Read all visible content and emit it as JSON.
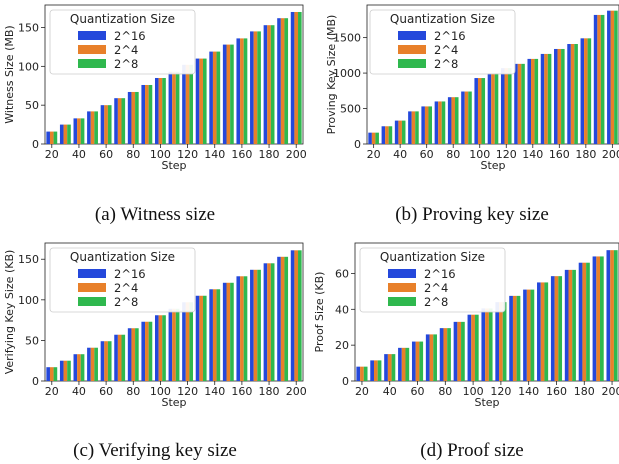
{
  "chart_data": [
    {
      "type": "bar",
      "caption": "(a) Witness size",
      "xlabel": "Step",
      "ylabel": "Witness Size (MB)",
      "categories": [
        20,
        30,
        40,
        50,
        60,
        70,
        80,
        90,
        100,
        110,
        120,
        130,
        140,
        150,
        160,
        170,
        180,
        190,
        200
      ],
      "xticks": [
        "20",
        "40",
        "60",
        "80",
        "100",
        "120",
        "140",
        "160",
        "180",
        "200"
      ],
      "yticks": [
        0,
        50,
        100,
        150
      ],
      "ylim": [
        0,
        179
      ],
      "legend": {
        "title": "Quantization Size",
        "placement": "upper-left"
      },
      "series": [
        {
          "name": "2^16",
          "color": "#2448db",
          "values": [
            16,
            25,
            33,
            42,
            50,
            59,
            67,
            76,
            85,
            93,
            102,
            110,
            119,
            128,
            136,
            145,
            153,
            162,
            170
          ]
        },
        {
          "name": "2^4",
          "color": "#e8802a",
          "values": [
            16,
            25,
            33,
            42,
            50,
            59,
            67,
            76,
            85,
            93,
            102,
            110,
            119,
            128,
            136,
            145,
            153,
            162,
            170
          ]
        },
        {
          "name": "2^8",
          "color": "#2fb84e",
          "values": [
            16,
            25,
            33,
            42,
            50,
            59,
            67,
            76,
            85,
            93,
            102,
            110,
            119,
            128,
            136,
            145,
            153,
            162,
            170
          ]
        }
      ]
    },
    {
      "type": "bar",
      "caption": "(b) Proving key size",
      "xlabel": "Step",
      "ylabel": "Proving Key Size (MB)",
      "categories": [
        20,
        30,
        40,
        50,
        60,
        70,
        80,
        90,
        100,
        110,
        120,
        130,
        140,
        150,
        160,
        170,
        180,
        190,
        200
      ],
      "xticks": [
        "20",
        "40",
        "60",
        "80",
        "100",
        "120",
        "140",
        "160",
        "180",
        "200"
      ],
      "yticks": [
        0,
        500,
        1000,
        1500
      ],
      "ylim": [
        0,
        1960
      ],
      "legend": {
        "title": "Quantization Size",
        "placement": "upper-left"
      },
      "series": [
        {
          "name": "2^16",
          "color": "#2448db",
          "values": [
            160,
            250,
            330,
            460,
            530,
            600,
            660,
            740,
            930,
            1000,
            1070,
            1130,
            1200,
            1270,
            1340,
            1410,
            1490,
            1820,
            1880
          ]
        },
        {
          "name": "2^4",
          "color": "#e8802a",
          "values": [
            160,
            250,
            330,
            460,
            530,
            600,
            660,
            740,
            930,
            1000,
            1070,
            1130,
            1200,
            1270,
            1340,
            1410,
            1490,
            1820,
            1880
          ]
        },
        {
          "name": "2^8",
          "color": "#2fb84e",
          "values": [
            160,
            250,
            330,
            460,
            530,
            600,
            660,
            740,
            930,
            1000,
            1070,
            1130,
            1200,
            1270,
            1340,
            1410,
            1490,
            1820,
            1880
          ]
        }
      ]
    },
    {
      "type": "bar",
      "caption": "(c) Verifying key size",
      "xlabel": "Step",
      "ylabel": "Verifying Key Size (KB)",
      "categories": [
        20,
        30,
        40,
        50,
        60,
        70,
        80,
        90,
        100,
        110,
        120,
        130,
        140,
        150,
        160,
        170,
        180,
        190,
        200
      ],
      "xticks": [
        "20",
        "40",
        "60",
        "80",
        "100",
        "120",
        "140",
        "160",
        "180",
        "200"
      ],
      "yticks": [
        0,
        50,
        100,
        150
      ],
      "ylim": [
        0,
        170
      ],
      "legend": {
        "title": "Quantization Size",
        "placement": "upper-left"
      },
      "series": [
        {
          "name": "2^16",
          "color": "#2448db",
          "values": [
            17,
            25,
            33,
            41,
            49,
            57,
            65,
            73,
            81,
            89,
            97,
            105,
            113,
            121,
            129,
            137,
            145,
            153,
            161
          ]
        },
        {
          "name": "2^4",
          "color": "#e8802a",
          "values": [
            17,
            25,
            33,
            41,
            49,
            57,
            65,
            73,
            81,
            89,
            97,
            105,
            113,
            121,
            129,
            137,
            145,
            153,
            161
          ]
        },
        {
          "name": "2^8",
          "color": "#2fb84e",
          "values": [
            17,
            25,
            33,
            41,
            49,
            57,
            65,
            73,
            81,
            89,
            97,
            105,
            113,
            121,
            129,
            137,
            145,
            153,
            161
          ]
        }
      ]
    },
    {
      "type": "bar",
      "caption": "(d) Proof size",
      "xlabel": "Step",
      "ylabel": "Proof Size (KB)",
      "categories": [
        20,
        30,
        40,
        50,
        60,
        70,
        80,
        90,
        100,
        110,
        120,
        130,
        140,
        150,
        160,
        170,
        180,
        190,
        200
      ],
      "xticks": [
        "20",
        "40",
        "60",
        "80",
        "100",
        "120",
        "140",
        "160",
        "180",
        "200"
      ],
      "yticks": [
        0,
        20,
        40,
        60
      ],
      "ylim": [
        0,
        77
      ],
      "legend": {
        "title": "Quantization Size",
        "placement": "upper-left"
      },
      "series": [
        {
          "name": "2^16",
          "color": "#2448db",
          "values": [
            8,
            11.5,
            15,
            18.5,
            22,
            26,
            29.5,
            33,
            37,
            40.5,
            44,
            47.5,
            51,
            55,
            58.5,
            62,
            66,
            69.5,
            73
          ]
        },
        {
          "name": "2^4",
          "color": "#e8802a",
          "values": [
            8,
            11.5,
            15,
            18.5,
            22,
            26,
            29.5,
            33,
            37,
            40.5,
            44,
            47.5,
            51,
            55,
            58.5,
            62,
            66,
            69.5,
            73
          ]
        },
        {
          "name": "2^8",
          "color": "#2fb84e",
          "values": [
            8,
            11.5,
            15,
            18.5,
            22,
            26,
            29.5,
            33,
            37,
            40.5,
            44,
            47.5,
            51,
            55,
            58.5,
            62,
            66,
            69.5,
            73
          ]
        }
      ]
    }
  ]
}
